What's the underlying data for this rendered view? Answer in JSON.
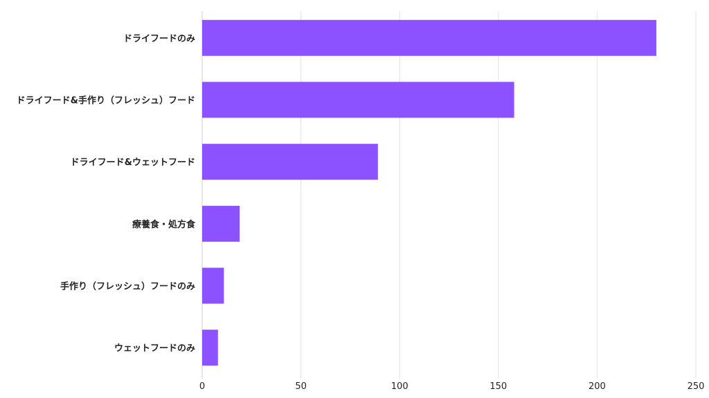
{
  "chart_data": {
    "type": "bar",
    "orientation": "horizontal",
    "categories": [
      "ドライフードのみ",
      "ドライフード&手作り（フレッシュ）フード",
      "ドライフード&ウェットフード",
      "療養食・処方食",
      "手作り（フレッシュ）フードのみ",
      "ウェットフードのみ"
    ],
    "values": [
      230,
      158,
      89,
      19,
      11,
      8
    ],
    "xlim": [
      0,
      250
    ],
    "xticks": [
      "0",
      "50",
      "100",
      "150",
      "200",
      "250"
    ],
    "tick_values": [
      0,
      50,
      100,
      150,
      200,
      250
    ],
    "grid": true,
    "legend": "none",
    "bar_color": "#8c52ff"
  }
}
